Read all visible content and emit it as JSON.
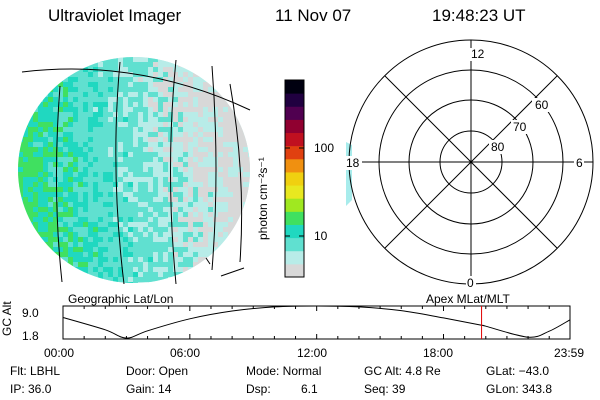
{
  "header": {
    "instrument": "Ultraviolet Imager",
    "date": "11 Nov 07",
    "time": "19:48:23 UT"
  },
  "image_panel": {
    "label": "Geographic Lat/Lon"
  },
  "polar_panel": {
    "label": "Apex MLat/MLT",
    "mlt_labels": {
      "top": "12",
      "left": "18",
      "right": "6",
      "bottom": "0"
    },
    "lat_labels": [
      "60",
      "70",
      "80"
    ]
  },
  "colorbar": {
    "unit_label": "photon cm⁻²s⁻¹",
    "ticks": [
      "100",
      "10"
    ],
    "colors": [
      "#d8d8d8",
      "#b8ece8",
      "#60e0d0",
      "#20d8c0",
      "#40e060",
      "#a0e820",
      "#e8e820",
      "#f0d010",
      "#f09010",
      "#e04010",
      "#c01020",
      "#900030",
      "#500050",
      "#200040",
      "#000010"
    ]
  },
  "timeline": {
    "y_label": "GC Alt",
    "y_ticks": [
      "9.0",
      "1.8"
    ],
    "x_ticks": [
      "00:00",
      "06:00",
      "12:00",
      "18:00",
      "23:59"
    ],
    "marker_color": "#e00000"
  },
  "chart_data": {
    "type": "line",
    "title": "",
    "xlabel": "",
    "ylabel": "GC Alt",
    "x": [
      "00:00",
      "02:00",
      "03:00",
      "04:00",
      "06:00",
      "08:00",
      "10:00",
      "12:00",
      "14:00",
      "16:00",
      "18:00",
      "19:48",
      "20:00",
      "22:00",
      "23:00",
      "23:59"
    ],
    "series": [
      {
        "values": [
          6.5,
          3.8,
          2.0,
          3.6,
          6.2,
          7.9,
          8.8,
          9.0,
          8.8,
          8.0,
          6.4,
          4.8,
          4.6,
          2.2,
          3.5,
          6.0
        ]
      }
    ],
    "ylim": [
      1.8,
      9.0
    ],
    "marker_time": "19:48"
  },
  "footer": {
    "row1": {
      "filter": "Flt: LBHL",
      "door": "Door: Open",
      "mode": "Mode: Normal",
      "gc_alt": "GC Alt: 4.8 Re",
      "glat": "GLat: −43.0"
    },
    "row2": {
      "ip": "IP: 36.0",
      "gain": "Gain: 14",
      "dsp_label": "Dsp:",
      "dsp_value": "6.1",
      "seq": "Seq: 39",
      "glon": "GLon: 343.8"
    }
  }
}
